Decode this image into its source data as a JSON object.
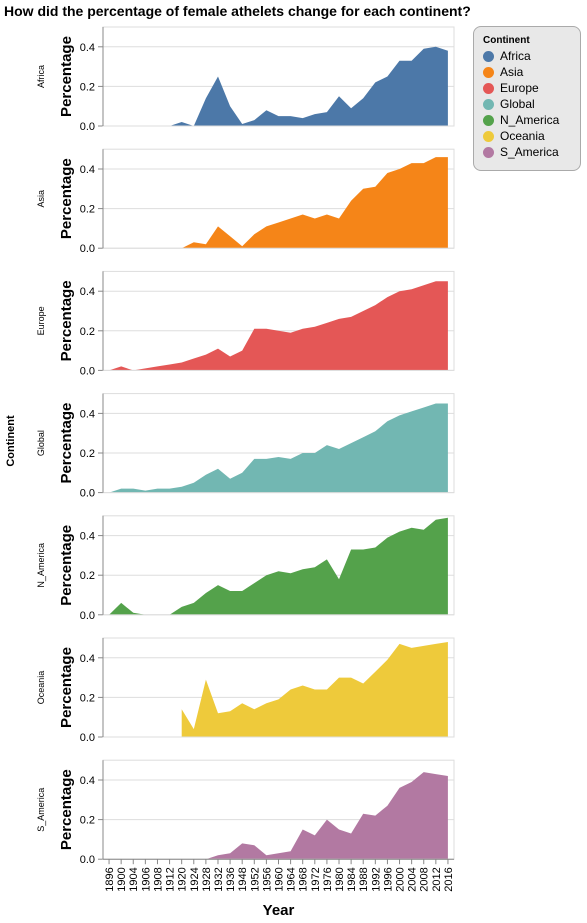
{
  "chart_data": {
    "type": "area",
    "title": "How did the percentage of female athelets change for each continent?",
    "xlabel": "Year",
    "ylabel": "Percentage",
    "row_label": "Continent",
    "ylim": [
      0,
      0.5
    ],
    "yticks": [
      0.0,
      0.2,
      0.4
    ],
    "ytick_labels": [
      "0.0",
      "0.2",
      "0.4"
    ],
    "grid": true,
    "legend_position": "top-right",
    "legend_title": "Continent",
    "categories": [
      "1896",
      "1900",
      "1904",
      "1906",
      "1908",
      "1912",
      "1920",
      "1924",
      "1928",
      "1932",
      "1936",
      "1948",
      "1952",
      "1956",
      "1960",
      "1964",
      "1968",
      "1972",
      "1976",
      "1980",
      "1984",
      "1988",
      "1992",
      "1996",
      "2000",
      "2004",
      "2008",
      "2012",
      "2016"
    ],
    "series": [
      {
        "name": "Africa",
        "color": "#4c78a8",
        "values": [
          null,
          null,
          null,
          null,
          null,
          0.0,
          0.02,
          0.0,
          0.14,
          0.25,
          0.1,
          0.01,
          0.03,
          0.08,
          0.05,
          0.05,
          0.04,
          0.06,
          0.07,
          0.15,
          0.09,
          0.14,
          0.22,
          0.25,
          0.33,
          0.33,
          0.39,
          0.4,
          0.38
        ]
      },
      {
        "name": "Asia",
        "color": "#f58518",
        "values": [
          null,
          null,
          null,
          null,
          null,
          null,
          0.0,
          0.03,
          0.02,
          0.11,
          0.06,
          0.01,
          0.07,
          0.11,
          0.13,
          0.15,
          0.17,
          0.15,
          0.17,
          0.15,
          0.24,
          0.3,
          0.31,
          0.38,
          0.4,
          0.43,
          0.43,
          0.46,
          0.46
        ]
      },
      {
        "name": "Europe",
        "color": "#e45756",
        "values": [
          0.0,
          0.02,
          0.0,
          0.01,
          0.02,
          0.03,
          0.04,
          0.06,
          0.08,
          0.11,
          0.07,
          0.1,
          0.21,
          0.21,
          0.2,
          0.19,
          0.21,
          0.22,
          0.24,
          0.26,
          0.27,
          0.3,
          0.33,
          0.37,
          0.4,
          0.41,
          0.43,
          0.45,
          0.45
        ]
      },
      {
        "name": "Global",
        "color": "#72b7b2",
        "values": [
          0.0,
          0.02,
          0.02,
          0.01,
          0.02,
          0.02,
          0.03,
          0.05,
          0.09,
          0.12,
          0.07,
          0.1,
          0.17,
          0.17,
          0.18,
          0.17,
          0.2,
          0.2,
          0.24,
          0.22,
          0.25,
          0.28,
          0.31,
          0.36,
          0.39,
          0.41,
          0.43,
          0.45,
          0.45
        ]
      },
      {
        "name": "N_America",
        "color": "#54a24b",
        "values": [
          0.0,
          0.06,
          0.01,
          0.0,
          0.0,
          0.0,
          0.04,
          0.06,
          0.11,
          0.15,
          0.12,
          0.12,
          0.16,
          0.2,
          0.22,
          0.21,
          0.23,
          0.24,
          0.28,
          0.18,
          0.33,
          0.33,
          0.34,
          0.39,
          0.42,
          0.44,
          0.43,
          0.48,
          0.49
        ]
      },
      {
        "name": "Oceania",
        "color": "#eeca3b",
        "values": [
          null,
          null,
          null,
          null,
          null,
          null,
          0.14,
          0.04,
          0.29,
          0.12,
          0.13,
          0.17,
          0.14,
          0.17,
          0.19,
          0.24,
          0.26,
          0.24,
          0.24,
          0.3,
          0.3,
          0.27,
          0.33,
          0.39,
          0.47,
          0.45,
          0.46,
          0.47,
          0.48
        ]
      },
      {
        "name": "S_America",
        "color": "#b279a2",
        "values": [
          0.0,
          0.0,
          0.0,
          0.0,
          0.0,
          0.0,
          0.0,
          0.0,
          0.0,
          0.02,
          0.03,
          0.08,
          0.07,
          0.02,
          0.03,
          0.04,
          0.15,
          0.12,
          0.2,
          0.15,
          0.13,
          0.23,
          0.22,
          0.27,
          0.36,
          0.39,
          0.44,
          0.43,
          0.42
        ]
      }
    ]
  }
}
